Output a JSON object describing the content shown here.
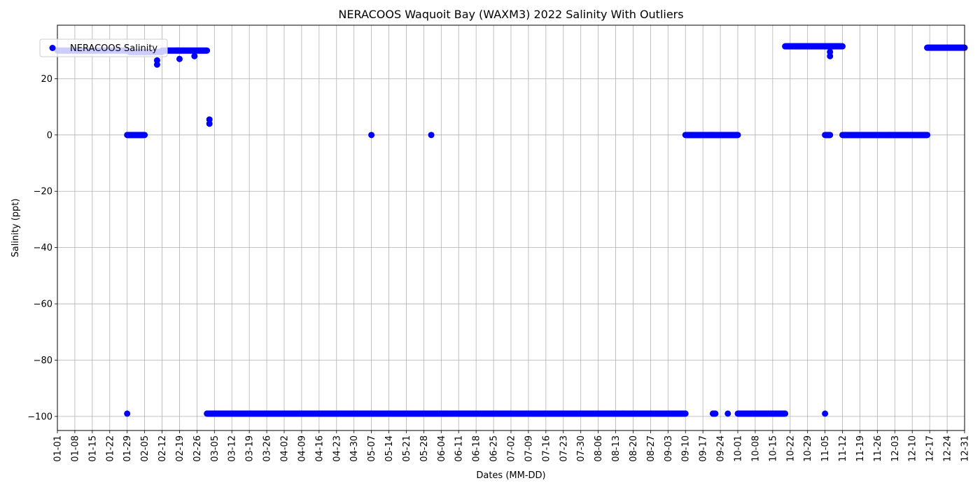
{
  "chart_data": {
    "type": "scatter",
    "title": "NERACOOS Waquoit Bay (WAXM3) 2022 Salinity With Outliers",
    "xlabel": "Dates (MM-DD)",
    "ylabel": "Salinity (ppt)",
    "grid": true,
    "legend_position": "upper-left",
    "xlim": [
      "2022-01-01",
      "2022-12-31"
    ],
    "ylim": [
      -105,
      39
    ],
    "yticks": [
      20,
      0,
      -20,
      -40,
      -60,
      -80,
      -100
    ],
    "xticks": [
      "01-01",
      "01-08",
      "01-15",
      "01-22",
      "01-29",
      "02-05",
      "02-12",
      "02-19",
      "02-26",
      "03-05",
      "03-12",
      "03-19",
      "03-26",
      "04-02",
      "04-09",
      "04-16",
      "04-23",
      "04-30",
      "05-07",
      "05-14",
      "05-21",
      "05-28",
      "06-04",
      "06-11",
      "06-18",
      "06-25",
      "07-02",
      "07-09",
      "07-16",
      "07-23",
      "07-30",
      "08-06",
      "08-13",
      "08-20",
      "08-27",
      "09-03",
      "09-10",
      "09-17",
      "09-24",
      "10-01",
      "10-08",
      "10-15",
      "10-22",
      "10-29",
      "11-05",
      "11-12",
      "11-19",
      "11-26",
      "12-03",
      "12-10",
      "12-17",
      "12-24",
      "12-31"
    ],
    "series": [
      {
        "name": "NERACOOS Salinity",
        "color": "#0000ff",
        "marker": "circle",
        "segments": [
          {
            "start": "2022-01-01",
            "end": "2022-01-29",
            "value": 30
          },
          {
            "start": "2022-01-30",
            "end": "2022-02-12",
            "value": 29.5
          },
          {
            "start": "2022-02-12",
            "end": "2022-03-02",
            "value": 30
          },
          {
            "start": "2022-01-29",
            "end": "2022-02-05",
            "value": 0
          },
          {
            "start": "2022-03-02",
            "end": "2022-09-10",
            "value": -99
          },
          {
            "start": "2022-09-10",
            "end": "2022-10-01",
            "value": 0
          },
          {
            "start": "2022-09-21",
            "end": "2022-09-22",
            "value": -99
          },
          {
            "start": "2022-09-27",
            "end": "2022-09-27",
            "value": -99
          },
          {
            "start": "2022-10-01",
            "end": "2022-10-20",
            "value": -99
          },
          {
            "start": "2022-10-20",
            "end": "2022-11-12",
            "value": 31.5
          },
          {
            "start": "2022-11-05",
            "end": "2022-11-07",
            "value": 0
          },
          {
            "start": "2022-11-12",
            "end": "2022-12-16",
            "value": 0
          },
          {
            "start": "2022-12-16",
            "end": "2022-12-31",
            "value": 31
          }
        ],
        "points": [
          {
            "x": "2022-01-29",
            "y": -99
          },
          {
            "x": "2022-02-10",
            "y": 25
          },
          {
            "x": "2022-02-10",
            "y": 26.5
          },
          {
            "x": "2022-02-19",
            "y": 27
          },
          {
            "x": "2022-02-25",
            "y": 28
          },
          {
            "x": "2022-03-03",
            "y": 5.5
          },
          {
            "x": "2022-03-03",
            "y": 4
          },
          {
            "x": "2022-05-07",
            "y": 0
          },
          {
            "x": "2022-05-31",
            "y": 0
          },
          {
            "x": "2022-11-05",
            "y": -99
          },
          {
            "x": "2022-11-07",
            "y": 28
          },
          {
            "x": "2022-11-07",
            "y": 29.5
          }
        ]
      }
    ]
  }
}
